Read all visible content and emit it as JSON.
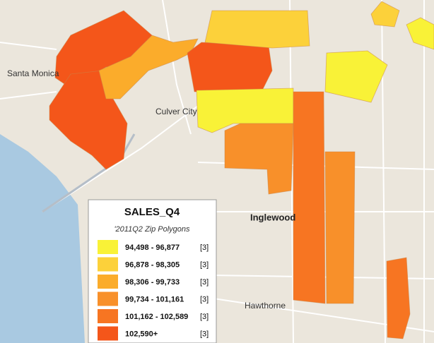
{
  "legend": {
    "title": "SALES_Q4",
    "subtitle": "'2011Q2 Zip Polygons",
    "items": [
      {
        "label": "94,498 - 96,877",
        "count": "[3]",
        "color": "#f9f237"
      },
      {
        "label": "96,878 - 98,305",
        "count": "[3]",
        "color": "#fcd13a"
      },
      {
        "label": "98,306 - 99,733",
        "count": "[3]",
        "color": "#fbac2b"
      },
      {
        "label": "99,734 - 101,161",
        "count": "[3]",
        "color": "#f8902a"
      },
      {
        "label": "101,162 - 102,589",
        "count": "[3]",
        "color": "#f77522"
      },
      {
        "label": "102,590+",
        "count": "[3]",
        "color": "#f4561a"
      }
    ]
  },
  "places": [
    {
      "label": "Santa Monica"
    },
    {
      "label": "Culver City"
    },
    {
      "label": "Inglewood"
    },
    {
      "label": "Hawthorne"
    }
  ]
}
